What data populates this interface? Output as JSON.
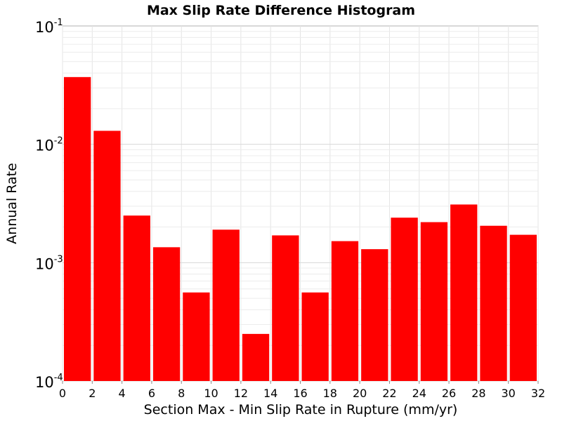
{
  "chart_data": {
    "type": "bar",
    "title": "Max Slip Rate Difference Histogram",
    "xlabel": "Section Max - Min Slip Rate in Rupture (mm/yr)",
    "ylabel": "Annual Rate",
    "yscale": "log",
    "ylim": [
      0.0001,
      0.1
    ],
    "xlim": [
      0,
      32
    ],
    "bin_width": 2,
    "grid": true,
    "x_ticks": [
      "0",
      "2",
      "4",
      "6",
      "8",
      "10",
      "12",
      "14",
      "16",
      "18",
      "20",
      "22",
      "24",
      "26",
      "28",
      "30",
      "32"
    ],
    "y_ticks": [
      {
        "value": 0.1,
        "base": "10",
        "exp": "-1"
      },
      {
        "value": 0.01,
        "base": "10",
        "exp": "-2"
      },
      {
        "value": 0.001,
        "base": "10",
        "exp": "-3"
      },
      {
        "value": 0.0001,
        "base": "10",
        "exp": "-4"
      }
    ],
    "bins": [
      {
        "x": 1,
        "value": 0.037
      },
      {
        "x": 3,
        "value": 0.013
      },
      {
        "x": 5,
        "value": 0.0025
      },
      {
        "x": 7,
        "value": 0.00135
      },
      {
        "x": 9,
        "value": 0.00056
      },
      {
        "x": 11,
        "value": 0.0019
      },
      {
        "x": 13,
        "value": 0.00025
      },
      {
        "x": 15,
        "value": 0.0017
      },
      {
        "x": 17,
        "value": 0.00056
      },
      {
        "x": 19,
        "value": 0.00152
      },
      {
        "x": 21,
        "value": 0.0013
      },
      {
        "x": 23,
        "value": 0.0024
      },
      {
        "x": 25,
        "value": 0.0022
      },
      {
        "x": 27,
        "value": 0.0031
      },
      {
        "x": 29,
        "value": 0.00205
      },
      {
        "x": 31,
        "value": 0.00172
      }
    ],
    "bar_color": "#ff0000"
  }
}
